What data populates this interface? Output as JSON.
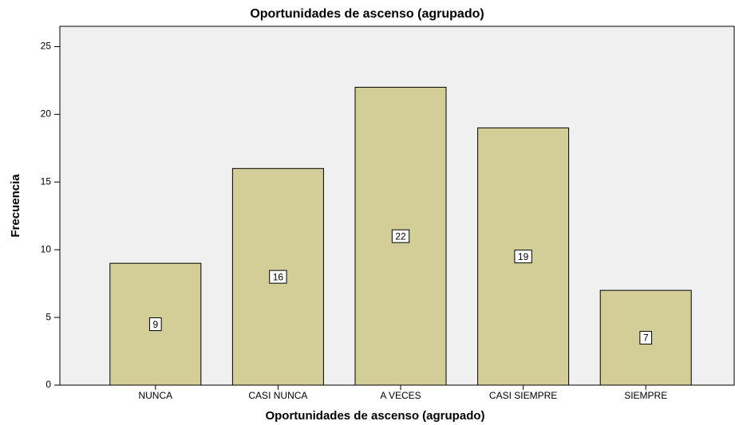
{
  "chart_data": {
    "type": "bar",
    "title": "Oportunidades de ascenso (agrupado)",
    "x_label": "Oportunidades de ascenso (agrupado)",
    "y_label": "Frecuencia",
    "categories": [
      "NUNCA",
      "CASI NUNCA",
      "A VECES",
      "CASI SIEMPRE",
      "SIEMPRE"
    ],
    "values": [
      9,
      16,
      22,
      19,
      7
    ],
    "color": "#d3ce97",
    "ylim": [
      0,
      26.5
    ],
    "yticks": [
      0,
      5,
      10,
      15,
      20,
      25
    ],
    "grid": false
  }
}
